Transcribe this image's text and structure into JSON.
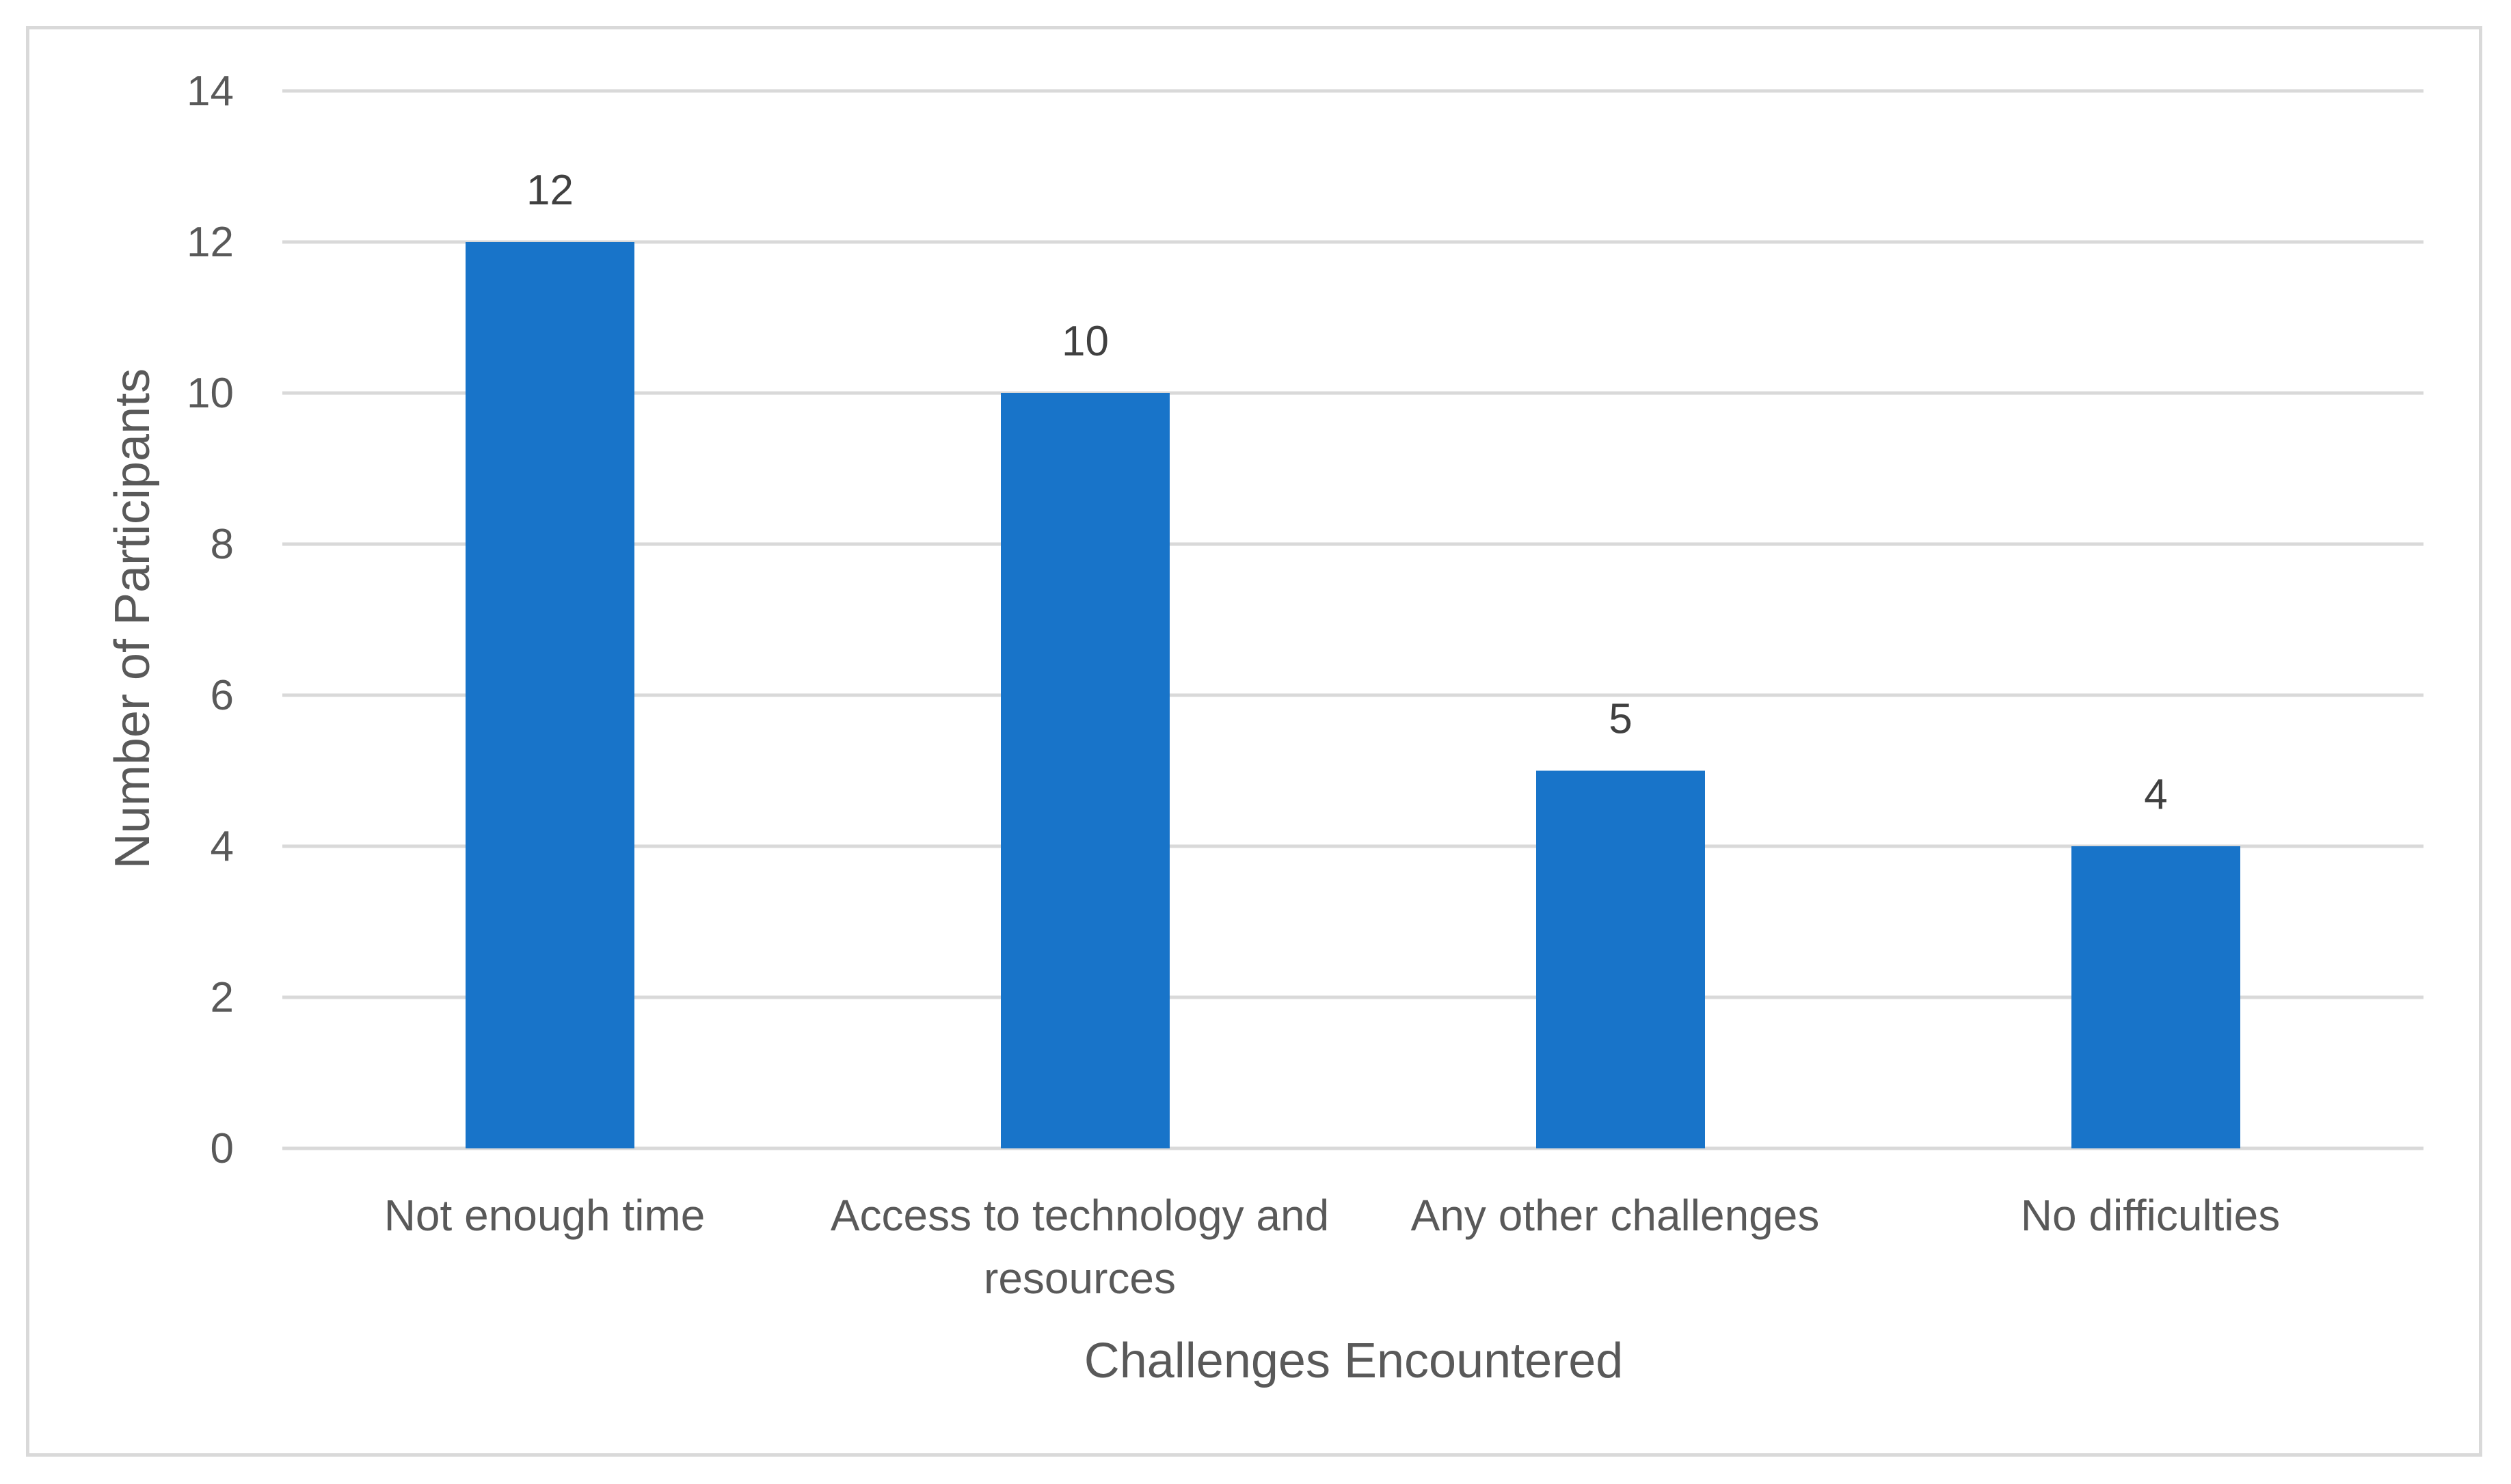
{
  "chart_data": {
    "type": "bar",
    "title": "",
    "xlabel": "Challenges Encountered",
    "ylabel": "Number of Participants",
    "categories": [
      [
        "Not enough time"
      ],
      [
        "Access to technology and",
        "resources"
      ],
      [
        "Any other challenges"
      ],
      [
        "No difficulties"
      ]
    ],
    "values": [
      12,
      10,
      5,
      4
    ],
    "ylim": [
      0,
      14
    ],
    "yticks": [
      0,
      2,
      4,
      6,
      8,
      10,
      12,
      14
    ],
    "grid": true,
    "legend": "none",
    "data_labels": true,
    "colors": {
      "bar": "#1874C9",
      "grid": "#d9d9d9",
      "text": "#595959"
    }
  }
}
